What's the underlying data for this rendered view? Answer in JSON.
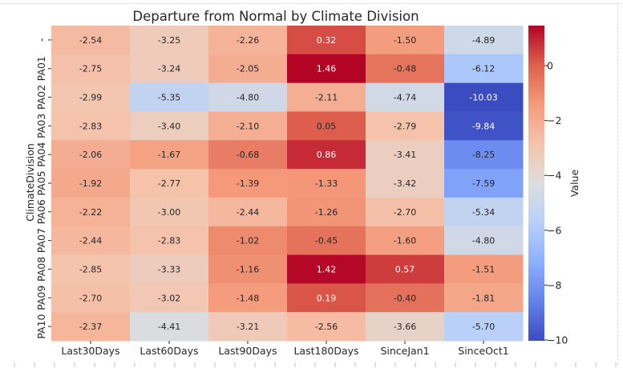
{
  "chart_data": {
    "type": "heatmap",
    "title": "Departure from Normal by Climate Division",
    "ylabel": "ClimateDivision",
    "xlabel": "",
    "colorbar_label": "Value",
    "colormap": "coolwarm",
    "vmin": -10.03,
    "vmax": 1.46,
    "colorbar_ticks": [
      "0",
      "−2",
      "−4",
      "−6",
      "−8",
      "−10"
    ],
    "colorbar_tick_values": [
      0,
      -2,
      -4,
      -6,
      -8,
      -10
    ],
    "columns": [
      "Last30Days",
      "Last60Days",
      "Last90Days",
      "Last180Days",
      "SinceJan1",
      "SinceOct1"
    ],
    "rows": [
      "-",
      "PA01",
      "PA02",
      "PA03",
      "PA04",
      "PA05",
      "PA06",
      "PA07",
      "PA08",
      "PA09",
      "PA10"
    ],
    "values": [
      [
        -2.54,
        -3.25,
        -2.26,
        0.32,
        -1.5,
        -4.89
      ],
      [
        -2.75,
        -3.24,
        -2.05,
        1.46,
        -0.48,
        -6.12
      ],
      [
        -2.99,
        -5.35,
        -4.8,
        -2.11,
        -4.74,
        -10.03
      ],
      [
        -2.83,
        -3.4,
        -2.1,
        0.05,
        -2.79,
        -9.84
      ],
      [
        -2.06,
        -1.67,
        -0.68,
        0.86,
        -3.41,
        -8.25
      ],
      [
        -1.92,
        -2.77,
        -1.39,
        -1.33,
        -3.42,
        -7.59
      ],
      [
        -2.22,
        -3.0,
        -2.44,
        -1.26,
        -2.7,
        -5.34
      ],
      [
        -2.44,
        -2.83,
        -1.02,
        -0.45,
        -1.6,
        -4.8
      ],
      [
        -2.85,
        -3.33,
        -1.16,
        1.42,
        0.57,
        -1.51
      ],
      [
        -2.7,
        -3.02,
        -1.48,
        0.19,
        -0.4,
        -1.81
      ],
      [
        -2.37,
        -4.41,
        -3.21,
        -2.56,
        -3.66,
        -5.7
      ]
    ],
    "value_labels": [
      [
        "-2.54",
        "-3.25",
        "-2.26",
        "0.32",
        "-1.50",
        "-4.89"
      ],
      [
        "-2.75",
        "-3.24",
        "-2.05",
        "1.46",
        "-0.48",
        "-6.12"
      ],
      [
        "-2.99",
        "-5.35",
        "-4.80",
        "-2.11",
        "-4.74",
        "-10.03"
      ],
      [
        "-2.83",
        "-3.40",
        "-2.10",
        "0.05",
        "-2.79",
        "-9.84"
      ],
      [
        "-2.06",
        "-1.67",
        "-0.68",
        "0.86",
        "-3.41",
        "-8.25"
      ],
      [
        "-1.92",
        "-2.77",
        "-1.39",
        "-1.33",
        "-3.42",
        "-7.59"
      ],
      [
        "-2.22",
        "-3.00",
        "-2.44",
        "-1.26",
        "-2.70",
        "-5.34"
      ],
      [
        "-2.44",
        "-2.83",
        "-1.02",
        "-0.45",
        "-1.60",
        "-4.80"
      ],
      [
        "-2.85",
        "-3.33",
        "-1.16",
        "1.42",
        "0.57",
        "-1.51"
      ],
      [
        "-2.70",
        "-3.02",
        "-1.48",
        "0.19",
        "-0.40",
        "-1.81"
      ],
      [
        "-2.37",
        "-4.41",
        "-3.21",
        "-2.56",
        "-3.66",
        "-5.70"
      ]
    ],
    "legend": "colorbar-right",
    "grid": false
  }
}
